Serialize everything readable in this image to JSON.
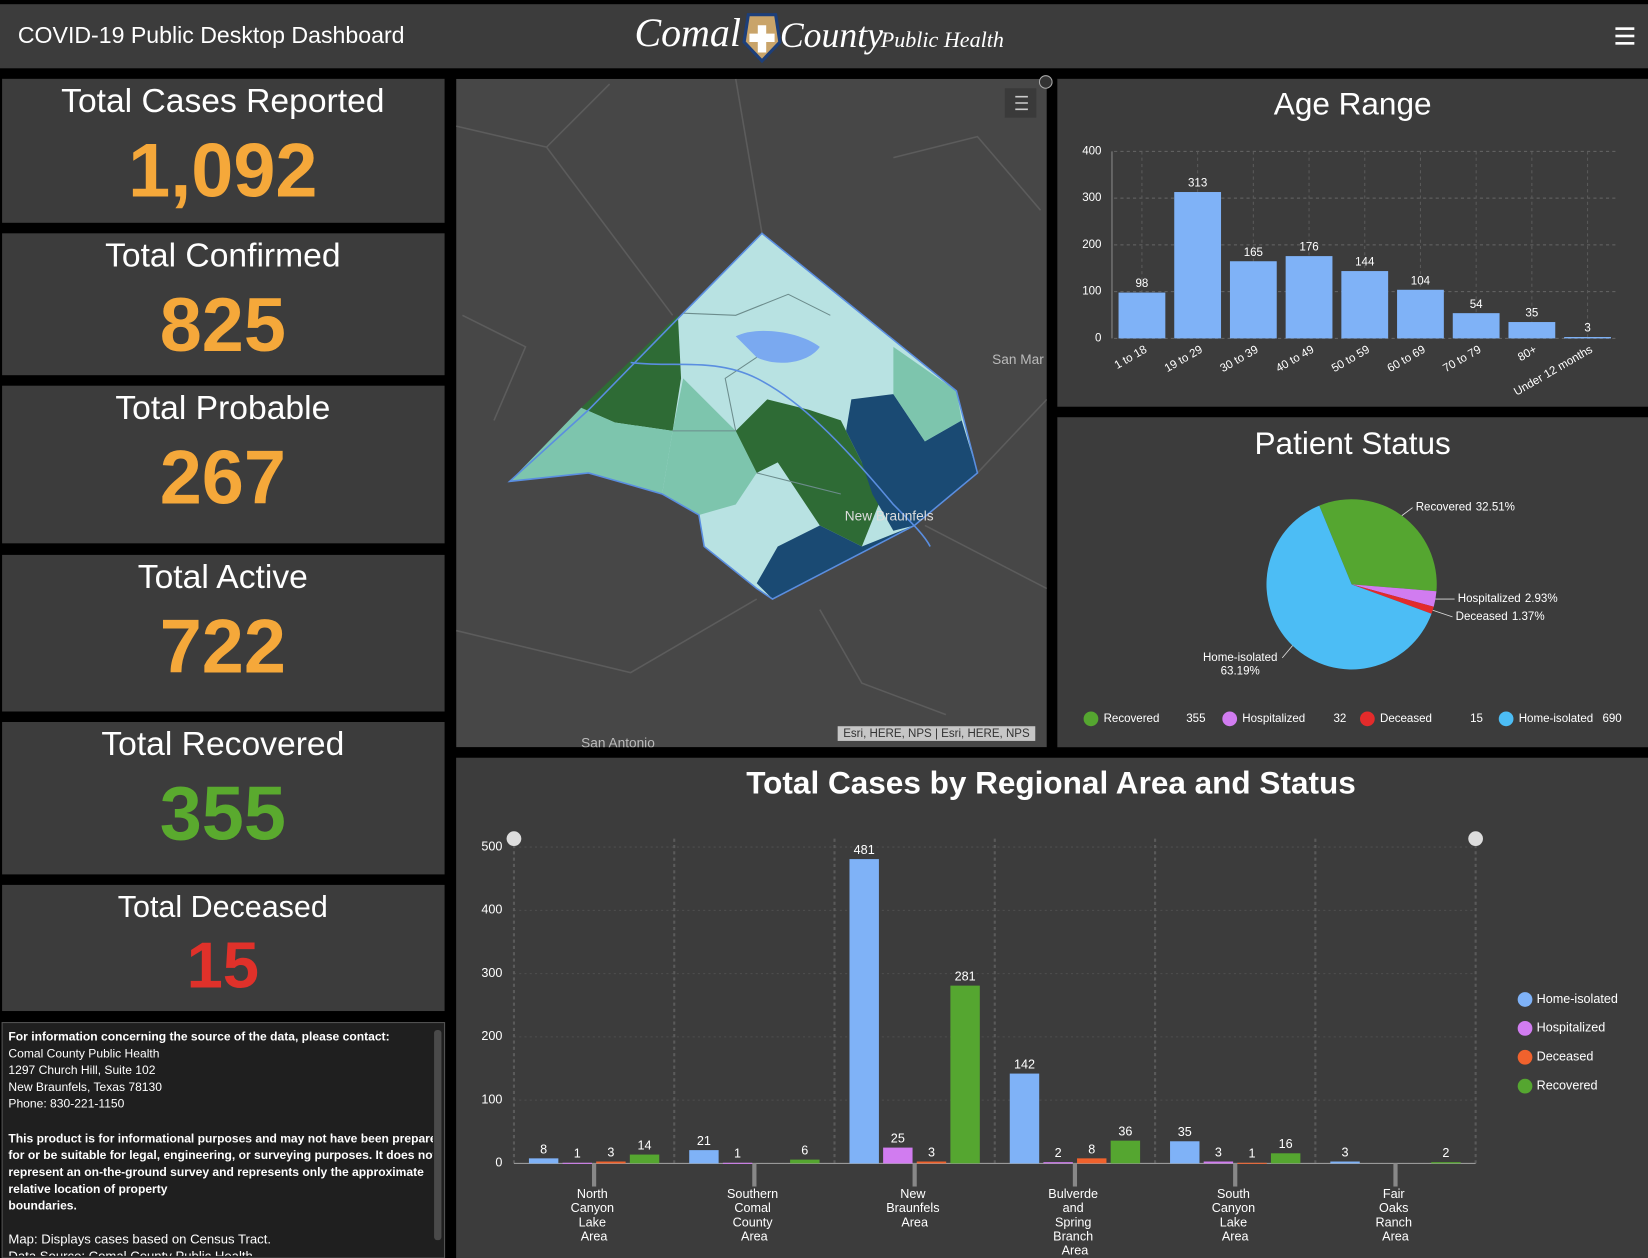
{
  "header": {
    "title": "COVID-19 Public Desktop Dashboard",
    "logo": [
      "Comal",
      "County",
      "Public Health"
    ]
  },
  "indicators": [
    {
      "label": "Total Cases Reported",
      "value": "1,092",
      "color": "#f5a83a"
    },
    {
      "label": "Total Confirmed",
      "value": 825,
      "color": "#f5a83a"
    },
    {
      "label": "Total Probable",
      "value": 267,
      "color": "#f5a83a"
    },
    {
      "label": "Total Active",
      "value": 722,
      "color": "#f5a83a"
    },
    {
      "label": "Total Recovered",
      "value": 355,
      "color": "#5aaa2e"
    },
    {
      "label": "Total Deceased",
      "value": 15,
      "color": "#e0312a"
    }
  ],
  "info": {
    "contact_heading": "For information concerning the source of the data, please contact:",
    "contact_lines": [
      "Comal County Public Health",
      "1297 Church Hill, Suite 102",
      "New Braunfels, Texas 78130",
      "Phone: 830-221-1150"
    ],
    "disclaimer": [
      "This product is for informational purposes and may not have been prepared",
      "for or be suitable for legal, engineering, or surveying purposes. It does not",
      "represent an on-the-ground survey and represents only the approximate",
      "relative location of property",
      "boundaries."
    ],
    "notes": [
      "Map: Displays cases based on Census Tract.",
      "Data Source: Comal County Public Health"
    ]
  },
  "map": {
    "places": [
      "San Mar",
      "New Braunfels",
      "San Antonio"
    ],
    "attribution": "Esri, HERE, NPS | Esri, HERE, NPS"
  },
  "chart_data": [
    {
      "type": "bar",
      "title": "Age Range",
      "categories": [
        "1 to 18",
        "19 to 29",
        "30 to 39",
        "40 to 49",
        "50 to 59",
        "60 to 69",
        "70 to 79",
        "80+",
        "Under 12 months"
      ],
      "values": [
        98,
        313,
        165,
        176,
        144,
        104,
        54,
        35,
        3
      ],
      "color": "#7fb2f7",
      "ylim": [
        0,
        400
      ],
      "yticks": [
        0,
        100,
        200,
        300,
        400
      ],
      "grid": true
    },
    {
      "type": "pie",
      "title": "Patient Status",
      "categories": [
        "Recovered",
        "Hospitalized",
        "Deceased",
        "Home-isolated"
      ],
      "values": [
        355,
        32,
        15,
        690
      ],
      "percent_labels": [
        "32.51%",
        "2.93%",
        "1.37%",
        "63.19%"
      ],
      "colors": [
        "#55a630",
        "#d17cf0",
        "#e32b2b",
        "#4cbdf5"
      ]
    },
    {
      "type": "grouped_bar",
      "title": "Total Cases by Regional Area and Status",
      "categories": [
        "North Canyon Lake Area",
        "Southern Comal County Area",
        "New Braunfels Area",
        "Bulverde and Spring Branch Area",
        "South Canyon Lake Area",
        "Fair Oaks Ranch Area"
      ],
      "series": [
        {
          "name": "Home-isolated",
          "color": "#7fb2f7",
          "values": [
            8,
            21,
            481,
            142,
            35,
            3
          ]
        },
        {
          "name": "Hospitalized",
          "color": "#d17cf0",
          "values": [
            1,
            1,
            25,
            2,
            3,
            null
          ]
        },
        {
          "name": "Deceased",
          "color": "#f0622d",
          "values": [
            3,
            null,
            3,
            8,
            1,
            null
          ]
        },
        {
          "name": "Recovered",
          "color": "#55a630",
          "values": [
            14,
            6,
            281,
            36,
            16,
            2
          ]
        }
      ],
      "ylim": [
        0,
        500
      ],
      "yticks": [
        0,
        100,
        200,
        300,
        400,
        500
      ],
      "grid": true,
      "legend": "right"
    }
  ]
}
